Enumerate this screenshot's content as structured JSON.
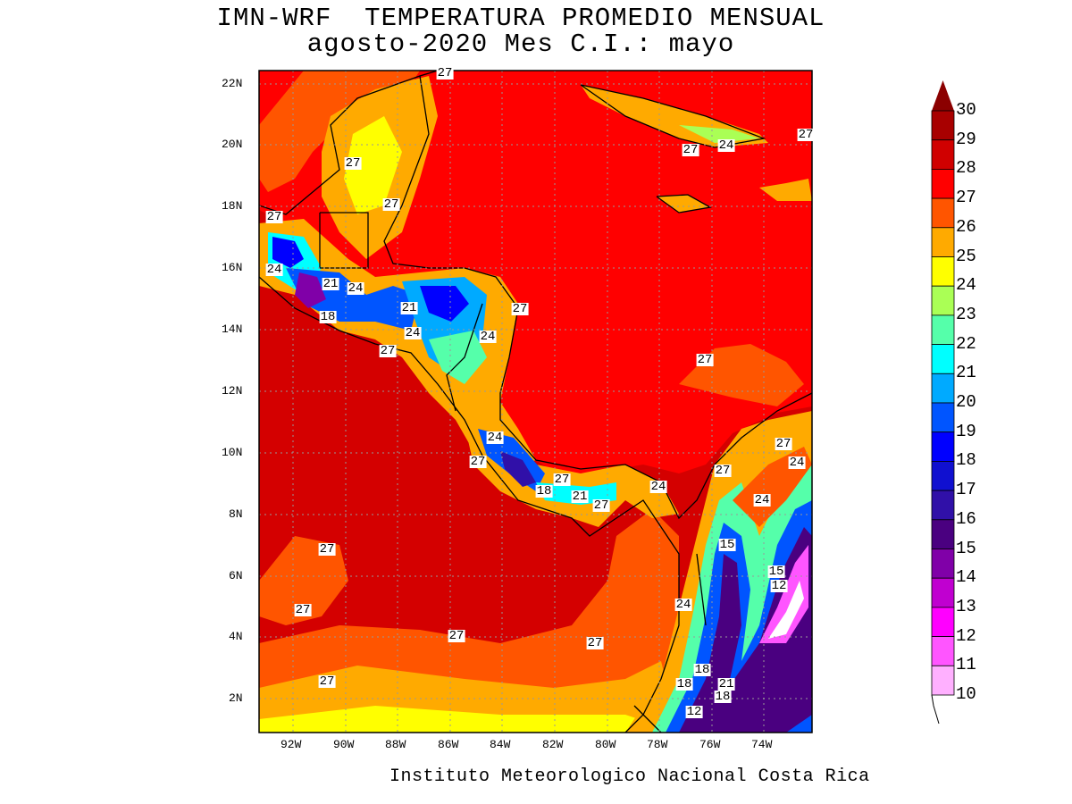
{
  "title": {
    "line1": "IMN-WRF  TEMPERATURA PROMEDIO MENSUAL",
    "line2": "agosto-2020 Mes C.I.: mayo"
  },
  "credit": "Instituto Meteorologico Nacional Costa Rica",
  "lat_ticks": [
    "22N",
    "20N",
    "18N",
    "16N",
    "14N",
    "12N",
    "10N",
    "8N",
    "6N",
    "4N",
    "2N"
  ],
  "lon_ticks": [
    "92W",
    "90W",
    "88W",
    "86W",
    "84W",
    "82W",
    "80W",
    "78W",
    "76W",
    "74W"
  ],
  "colorbar": {
    "labels": [
      "30",
      "29",
      "28",
      "27",
      "26",
      "25",
      "24",
      "23",
      "22",
      "21",
      "20",
      "19",
      "18",
      "17",
      "16",
      "15",
      "14",
      "13",
      "12",
      "11",
      "10"
    ],
    "colors": [
      "#a80000",
      "#d00000",
      "#ff0000",
      "#ff5500",
      "#ffaa00",
      "#ffff00",
      "#aaff55",
      "#55ffaa",
      "#00ffff",
      "#00aaff",
      "#0055ff",
      "#0000ff",
      "#1010d0",
      "#3010a8",
      "#4a0080",
      "#8000a8",
      "#c000d0",
      "#ff00ff",
      "#ff55ff",
      "#ffb0ff"
    ],
    "over_color": "#8b0000"
  },
  "contour_labels": [
    "27",
    "27",
    "24",
    "27",
    "27",
    "27",
    "27",
    "24",
    "21",
    "24",
    "18",
    "21",
    "27",
    "24",
    "24",
    "27",
    "27",
    "24",
    "27",
    "27",
    "24",
    "27",
    "27",
    "18",
    "21",
    "24",
    "27",
    "24",
    "15",
    "27",
    "15",
    "12",
    "27",
    "24",
    "27",
    "27",
    "18",
    "18",
    "21",
    "18",
    "27",
    "12"
  ]
}
